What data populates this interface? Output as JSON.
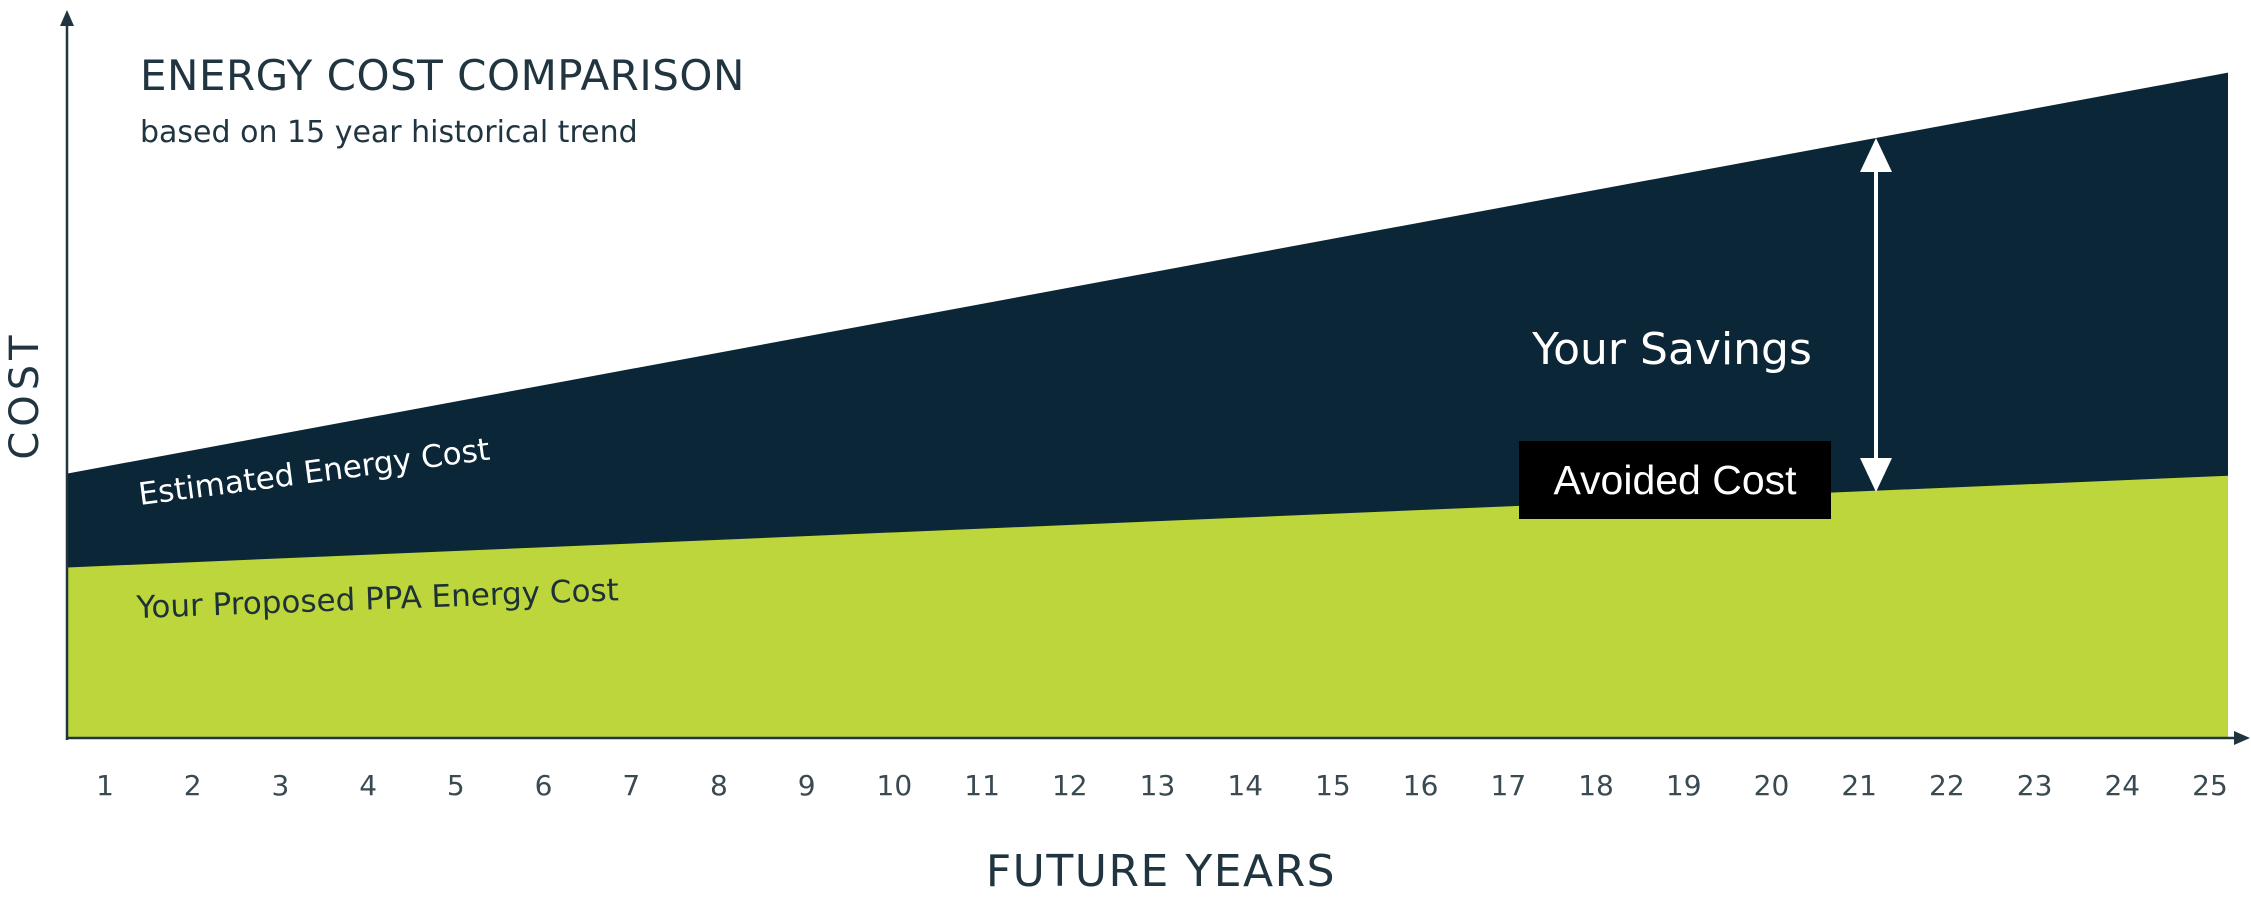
{
  "colors": {
    "estimated_area": "#0b2636",
    "ppa_area": "#bcd63b",
    "axis": "#213540",
    "callout_bg": "#000000",
    "callout_text": "#ffffff"
  },
  "chart_data": {
    "type": "area",
    "title": "ENERGY COST COMPARISON",
    "subtitle": "based on 15 year historical trend",
    "xlabel": "FUTURE YEARS",
    "ylabel": "COST",
    "x": [
      1,
      2,
      3,
      4,
      5,
      6,
      7,
      8,
      9,
      10,
      11,
      12,
      13,
      14,
      15,
      16,
      17,
      18,
      19,
      20,
      21,
      22,
      23,
      24,
      25
    ],
    "ylim": [
      0,
      100
    ],
    "series": [
      {
        "name": "Estimated Energy Cost",
        "x": [
          1,
          25
        ],
        "values": [
          41,
          100
        ]
      },
      {
        "name": "Your Proposed PPA Energy Cost",
        "x": [
          1,
          25
        ],
        "values": [
          26,
          39.5
        ]
      }
    ],
    "annotations": [
      {
        "text": "Your Savings"
      },
      {
        "text": "Avoided Cost"
      }
    ],
    "grid": false
  }
}
